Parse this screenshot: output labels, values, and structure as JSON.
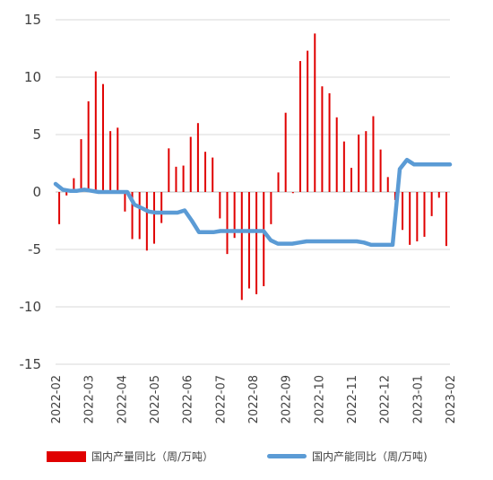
{
  "chart_data": {
    "type": "bar+line",
    "title": "",
    "xlabel": "",
    "ylabel": "",
    "ylim": [
      -15,
      15
    ],
    "yticks": [
      15,
      10,
      5,
      0,
      -5,
      -10,
      -15
    ],
    "xtick_labels": [
      "2022-02",
      "2022-03",
      "2022-04",
      "2022-05",
      "2022-06",
      "2022-07",
      "2022-08",
      "2022-09",
      "2022-10",
      "2022-11",
      "2022-12",
      "2023-01",
      "2023-02"
    ],
    "grid": "horizontal",
    "legend_position": "bottom",
    "series": [
      {
        "name": "国内产量同比（周/万吨）",
        "type": "bar",
        "color": "#e00000",
        "values": [
          -2.8,
          -0.3,
          1.2,
          4.6,
          7.9,
          10.5,
          9.4,
          5.3,
          5.6,
          -1.7,
          -4.1,
          -4.1,
          -5.1,
          -4.5,
          -2.7,
          3.8,
          2.2,
          2.3,
          4.8,
          6.0,
          3.5,
          3.0,
          -2.3,
          -5.4,
          -4.0,
          -9.4,
          -8.4,
          -8.9,
          -8.2,
          -2.8,
          1.7,
          6.9,
          -0.1,
          11.4,
          12.3,
          13.8,
          9.2,
          8.6,
          6.5,
          4.4,
          2.1,
          5.0,
          5.3,
          6.6,
          3.7,
          1.3,
          -0.7,
          -3.3,
          -4.6,
          -4.3,
          -3.9,
          -2.1,
          -0.5,
          -4.7
        ]
      },
      {
        "name": "国内产能同比（周/万吨)",
        "type": "line",
        "color": "#5b9bd5",
        "values": [
          0.7,
          0.2,
          0.1,
          0.1,
          0.2,
          0.1,
          0.0,
          0.0,
          0.0,
          0.0,
          0.0,
          -1.1,
          -1.4,
          -1.7,
          -1.8,
          -1.8,
          -1.8,
          -1.8,
          -1.6,
          -2.5,
          -3.5,
          -3.5,
          -3.5,
          -3.4,
          -3.4,
          -3.4,
          -3.4,
          -3.4,
          -3.4,
          -3.4,
          -4.2,
          -4.5,
          -4.5,
          -4.5,
          -4.4,
          -4.3,
          -4.3,
          -4.3,
          -4.3,
          -4.3,
          -4.3,
          -4.3,
          -4.3,
          -4.4,
          -4.6,
          -4.6,
          -4.6,
          -4.6,
          2.0,
          2.8,
          2.4,
          2.4,
          2.4,
          2.4,
          2.4,
          2.4
        ]
      }
    ]
  }
}
